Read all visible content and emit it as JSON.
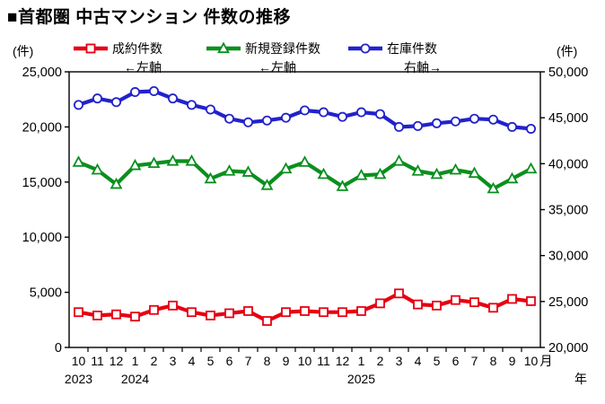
{
  "title": "■首都圏 中古マンション 件数の推移",
  "legend": {
    "left_unit": "(件)",
    "right_unit": "(件)",
    "items": [
      {
        "label": "成約件数",
        "note": "←左軸",
        "color": "#E60012",
        "marker": "square"
      },
      {
        "label": "新規登録件数",
        "note": "←左軸",
        "color": "#0A8F1E",
        "marker": "triangle"
      },
      {
        "label": "在庫件数",
        "note": "右軸→",
        "color": "#2222CC",
        "marker": "circle"
      }
    ]
  },
  "chart_data": {
    "type": "line",
    "title": "首都圏 中古マンション 件数の推移",
    "x_months": [
      "10",
      "11",
      "12",
      "1",
      "2",
      "3",
      "4",
      "5",
      "6",
      "7",
      "8",
      "9",
      "10",
      "11",
      "12",
      "1",
      "2",
      "3",
      "4",
      "5",
      "6",
      "7",
      "8",
      "9",
      "10"
    ],
    "x_suffix": "月",
    "x_axis_note": "年",
    "x_years": [
      {
        "index": 0,
        "label": "2023"
      },
      {
        "index": 3,
        "label": "2024"
      },
      {
        "index": 15,
        "label": "2025"
      }
    ],
    "left_axis": {
      "min": 0,
      "max": 25000,
      "tick_step": 5000,
      "ticks": [
        "0",
        "5,000",
        "10,000",
        "15,000",
        "20,000",
        "25,000"
      ]
    },
    "right_axis": {
      "min": 20000,
      "max": 50000,
      "tick_step": 5000,
      "ticks": [
        "20,000",
        "25,000",
        "30,000",
        "35,000",
        "40,000",
        "45,000",
        "50,000"
      ]
    },
    "grid": false,
    "legend_position": "top",
    "series": [
      {
        "name": "成約件数",
        "axis": "left",
        "color": "#E60012",
        "marker": "square",
        "values": [
          3200,
          2900,
          3000,
          2800,
          3400,
          3800,
          3200,
          2900,
          3100,
          3300,
          2400,
          3200,
          3300,
          3200,
          3200,
          3300,
          4000,
          4900,
          3900,
          3800,
          4300,
          4100,
          3600,
          4400,
          4200
        ]
      },
      {
        "name": "新規登録件数",
        "axis": "left",
        "color": "#0A8F1E",
        "marker": "triangle",
        "values": [
          16800,
          16100,
          14800,
          16500,
          16700,
          16900,
          16900,
          15300,
          16000,
          15900,
          14700,
          16200,
          16800,
          15700,
          14600,
          15600,
          15700,
          16900,
          16000,
          15700,
          16100,
          15800,
          14400,
          15300,
          16200
        ]
      },
      {
        "name": "在庫件数",
        "axis": "right",
        "color": "#2222CC",
        "marker": "circle",
        "values": [
          46400,
          47100,
          46700,
          47800,
          47900,
          47100,
          46400,
          45900,
          44900,
          44500,
          44700,
          45000,
          45800,
          45600,
          45100,
          45600,
          45400,
          44000,
          44100,
          44400,
          44600,
          44900,
          44800,
          44000,
          43800
        ]
      }
    ]
  }
}
